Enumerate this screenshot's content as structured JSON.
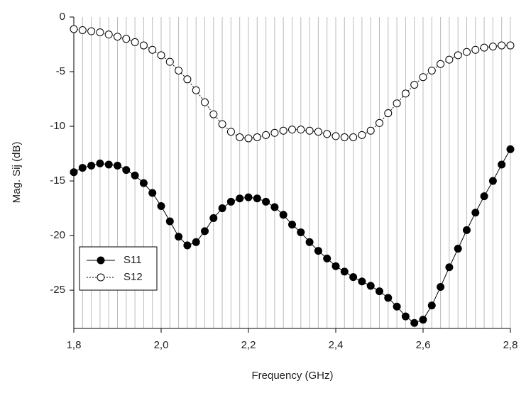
{
  "chart_data": {
    "type": "line",
    "x_label": "Frequency (GHz)",
    "y_label": "Mag. Sij (dB)",
    "x": [
      1.8,
      1.82,
      1.84,
      1.86,
      1.88,
      1.9,
      1.92,
      1.94,
      1.96,
      1.98,
      2.0,
      2.02,
      2.04,
      2.06,
      2.08,
      2.1,
      2.12,
      2.14,
      2.16,
      2.18,
      2.2,
      2.22,
      2.24,
      2.26,
      2.28,
      2.3,
      2.32,
      2.34,
      2.36,
      2.38,
      2.4,
      2.42,
      2.44,
      2.46,
      2.48,
      2.5,
      2.52,
      2.54,
      2.56,
      2.58,
      2.6,
      2.62,
      2.64,
      2.66,
      2.68,
      2.7,
      2.72,
      2.74,
      2.76,
      2.78,
      2.8
    ],
    "series": [
      {
        "name": "S11",
        "color": "#000000",
        "marker": "filled",
        "line_style": "solid",
        "values": [
          -14.2,
          -13.8,
          -13.6,
          -13.4,
          -13.5,
          -13.6,
          -14.0,
          -14.5,
          -15.2,
          -16.1,
          -17.3,
          -18.7,
          -20.1,
          -20.9,
          -20.6,
          -19.6,
          -18.4,
          -17.5,
          -16.9,
          -16.6,
          -16.5,
          -16.6,
          -16.9,
          -17.4,
          -18.1,
          -19.0,
          -19.7,
          -20.6,
          -21.4,
          -22.1,
          -22.8,
          -23.3,
          -23.8,
          -24.2,
          -24.6,
          -25.1,
          -25.7,
          -26.5,
          -27.4,
          -28.0,
          -27.7,
          -26.4,
          -24.7,
          -22.9,
          -21.2,
          -19.5,
          -17.9,
          -16.4,
          -15.0,
          -13.5,
          -12.1
        ]
      },
      {
        "name": "S12",
        "color": "#000000",
        "marker": "open",
        "line_style": "dotted",
        "values": [
          -1.1,
          -1.2,
          -1.3,
          -1.4,
          -1.6,
          -1.8,
          -2.0,
          -2.3,
          -2.6,
          -3.0,
          -3.5,
          -4.1,
          -4.9,
          -5.7,
          -6.7,
          -7.8,
          -8.9,
          -9.8,
          -10.5,
          -11.0,
          -11.1,
          -11.0,
          -10.8,
          -10.6,
          -10.4,
          -10.3,
          -10.3,
          -10.4,
          -10.5,
          -10.7,
          -10.9,
          -11.0,
          -11.0,
          -10.8,
          -10.4,
          -9.7,
          -8.8,
          -7.9,
          -7.0,
          -6.2,
          -5.5,
          -4.9,
          -4.3,
          -3.9,
          -3.5,
          -3.2,
          -3.0,
          -2.8,
          -2.7,
          -2.6,
          -2.6
        ]
      }
    ],
    "xlim": [
      1.8,
      2.8
    ],
    "xticks": [
      {
        "value": 1.8,
        "label": "1,8"
      },
      {
        "value": 2.0,
        "label": "2,0"
      },
      {
        "value": 2.2,
        "label": "2,2"
      },
      {
        "value": 2.4,
        "label": "2,4"
      },
      {
        "value": 2.6,
        "label": "2,6"
      },
      {
        "value": 2.8,
        "label": "2,8"
      }
    ],
    "ylim": [
      -28.5,
      0
    ],
    "yticks": [
      0,
      -5,
      -10,
      -15,
      -20,
      -25
    ],
    "grid": true,
    "legend": "lower left"
  }
}
